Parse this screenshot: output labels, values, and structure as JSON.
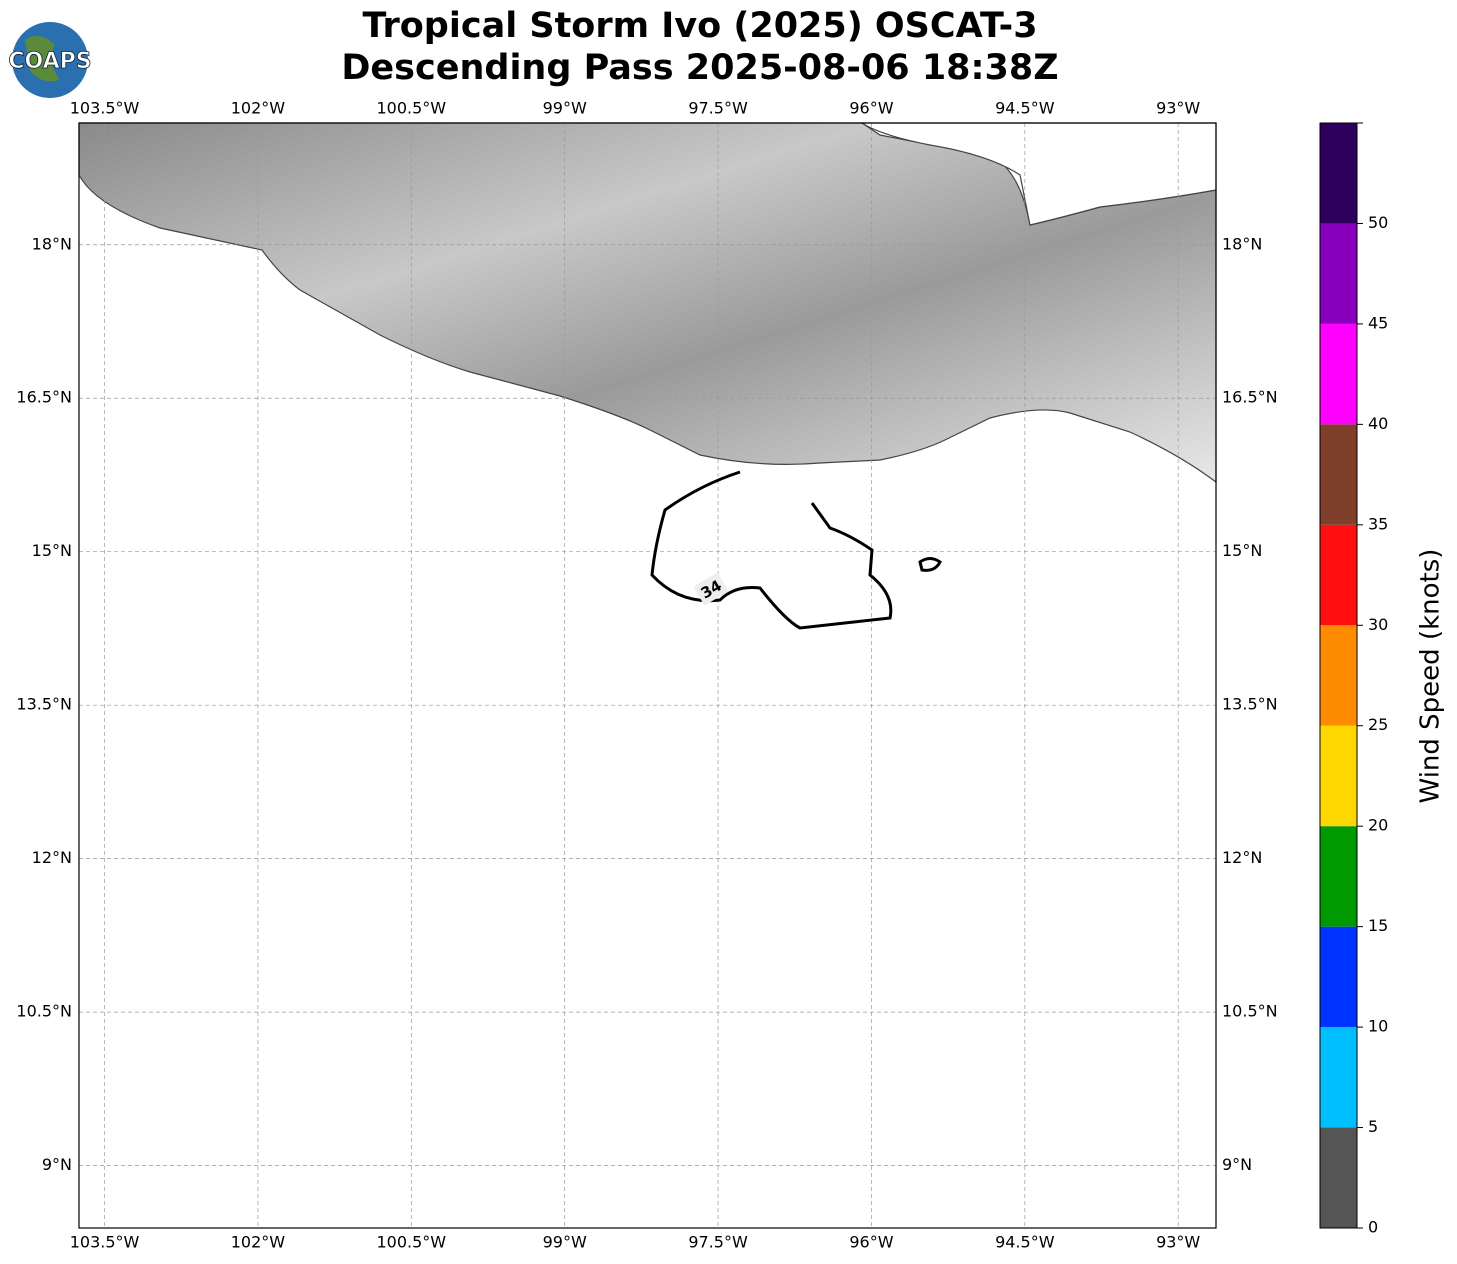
{
  "logo": "COAPS",
  "chart_data": {
    "type": "map",
    "title": "Tropical Storm Ivo (2025) OSCAT-3",
    "subtitle": "Descending Pass 2025-08-06 18:38Z",
    "xlim": [
      -103.75,
      -92.63
    ],
    "ylim": [
      8.39,
      19.19
    ],
    "xticks": [
      {
        "value": -103.5,
        "label": "103.5°W"
      },
      {
        "value": -102,
        "label": "102°W"
      },
      {
        "value": -100.5,
        "label": "100.5°W"
      },
      {
        "value": -99,
        "label": "99°W"
      },
      {
        "value": -97.5,
        "label": "97.5°W"
      },
      {
        "value": -96,
        "label": "96°W"
      },
      {
        "value": -94.5,
        "label": "94.5°W"
      },
      {
        "value": -93,
        "label": "93°W"
      }
    ],
    "yticks": [
      {
        "value": 18,
        "label": "18°N"
      },
      {
        "value": 16.5,
        "label": "16.5°N"
      },
      {
        "value": 15,
        "label": "15°N"
      },
      {
        "value": 13.5,
        "label": "13.5°N"
      },
      {
        "value": 12,
        "label": "12°N"
      },
      {
        "value": 10.5,
        "label": "10.5°N"
      },
      {
        "value": 9,
        "label": "9°N"
      }
    ],
    "grid": true,
    "contour_label": "34",
    "colorbar": {
      "label": "Wind Speed (knots)",
      "bins": [
        0,
        5,
        10,
        15,
        20,
        25,
        30,
        35,
        40,
        45,
        50,
        55
      ],
      "colors": [
        "#555555",
        "#00bfff",
        "#0033ff",
        "#009900",
        "#ffd700",
        "#ff8c00",
        "#ff0f0f",
        "#7f3f2a",
        "#ff00ff",
        "#8800bb",
        "#2e005e"
      ],
      "ticks": [
        0,
        5,
        10,
        15,
        20,
        25,
        30,
        35,
        40,
        45,
        50
      ]
    }
  }
}
